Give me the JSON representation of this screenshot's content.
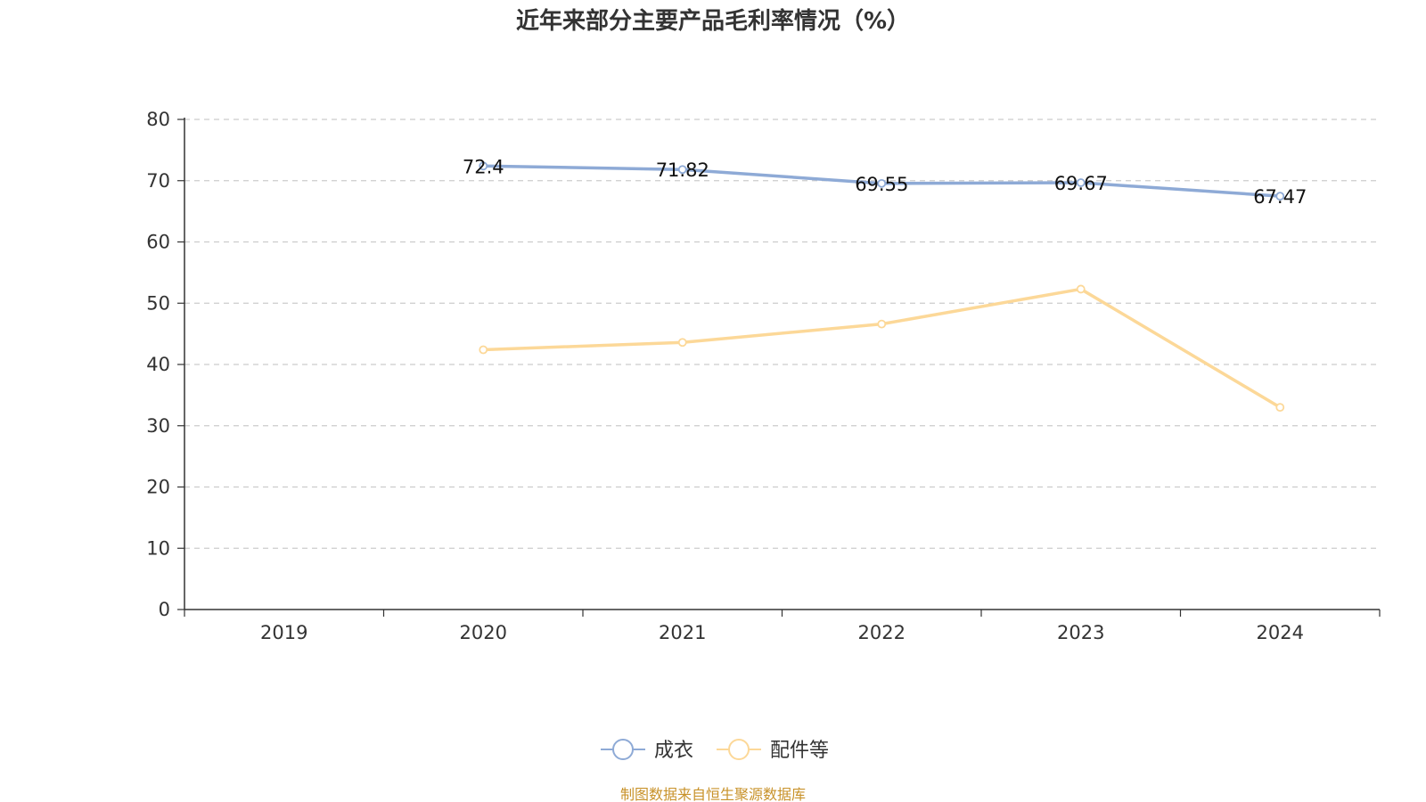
{
  "chart_data": {
    "type": "line",
    "title": "近年来部分主要产品毛利率情况（%）",
    "categories": [
      "2019",
      "2020",
      "2021",
      "2022",
      "2023",
      "2024"
    ],
    "ylim": [
      0,
      80
    ],
    "yticks": [
      0,
      10,
      20,
      30,
      40,
      50,
      60,
      70,
      80
    ],
    "grid": true,
    "legend_position": "bottom-center",
    "series": [
      {
        "name": "成衣",
        "color": "#8eaad6",
        "values": [
          null,
          72.4,
          71.82,
          69.55,
          69.67,
          67.47
        ],
        "data_labels": [
          null,
          "72.4",
          "71.82",
          "69.55",
          "69.67",
          "67.47"
        ]
      },
      {
        "name": "配件等",
        "color": "#fcd898",
        "values": [
          null,
          42.4,
          43.6,
          46.6,
          52.3,
          33.0
        ],
        "data_labels": null
      }
    ]
  },
  "source_text": "制图数据来自恒生聚源数据库",
  "source_color": "#c8922a"
}
